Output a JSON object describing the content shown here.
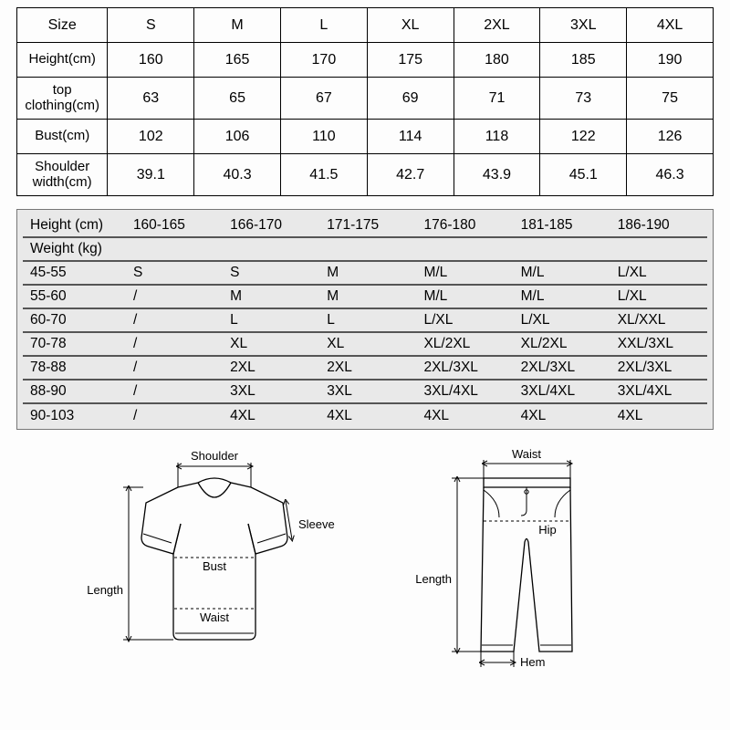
{
  "sizeTable": {
    "columns": [
      "Size",
      "S",
      "M",
      "L",
      "XL",
      "2XL",
      "3XL",
      "4XL"
    ],
    "rows": [
      {
        "label": "Height(cm)",
        "values": [
          "160",
          "165",
          "170",
          "175",
          "180",
          "185",
          "190"
        ]
      },
      {
        "label": "top clothing(cm)",
        "values": [
          "63",
          "65",
          "67",
          "69",
          "71",
          "73",
          "75"
        ]
      },
      {
        "label": "Bust(cm)",
        "values": [
          "102",
          "106",
          "110",
          "114",
          "118",
          "122",
          "126"
        ]
      },
      {
        "label": "Shoulder width(cm)",
        "values": [
          "39.1",
          "40.3",
          "41.5",
          "42.7",
          "43.9",
          "45.1",
          "46.3"
        ]
      }
    ],
    "colWidths": [
      "13%",
      "12.4%",
      "12.4%",
      "12.4%",
      "12.4%",
      "12.4%",
      "12.4%",
      "12.4%"
    ]
  },
  "recTable": {
    "headerLabel": "Height (cm)",
    "heightRanges": [
      "160-165",
      "166-170",
      "171-175",
      "176-180",
      "181-185",
      "186-190"
    ],
    "weightLabel": "Weight (kg)",
    "rows": [
      {
        "label": "45-55",
        "values": [
          "S",
          "S",
          "M",
          "M/L",
          "M/L",
          "L/XL"
        ]
      },
      {
        "label": "55-60",
        "values": [
          "/",
          "M",
          "M",
          "M/L",
          "M/L",
          "L/XL"
        ]
      },
      {
        "label": "60-70",
        "values": [
          "/",
          "L",
          "L",
          "L/XL",
          "L/XL",
          "XL/XXL"
        ]
      },
      {
        "label": "70-78",
        "values": [
          "/",
          "XL",
          "XL",
          "XL/2XL",
          "XL/2XL",
          "XXL/3XL"
        ]
      },
      {
        "label": "78-88",
        "values": [
          "/",
          "2XL",
          "2XL",
          "2XL/3XL",
          "2XL/3XL",
          "2XL/3XL"
        ]
      },
      {
        "label": "88-90",
        "values": [
          "/",
          "3XL",
          "3XL",
          "3XL/4XL",
          "3XL/4XL",
          "3XL/4XL"
        ]
      },
      {
        "label": "90-103",
        "values": [
          "/",
          "4XL",
          "4XL",
          "4XL",
          "4XL",
          "4XL"
        ]
      }
    ],
    "colWidths": [
      "15%",
      "14.1%",
      "14.1%",
      "14.1%",
      "14.1%",
      "14.1%",
      "14.1%"
    ],
    "background": "#e9e9e9",
    "lineColor": "#555"
  },
  "diagrams": {
    "shirt": {
      "labels": {
        "shoulder": "Shoulder",
        "sleeve": "Sleeve",
        "bust": "Bust",
        "length": "Length",
        "waist": "Waist"
      }
    },
    "pants": {
      "labels": {
        "waist": "Waist",
        "hip": "Hip",
        "length": "Length",
        "hem": "Hem"
      }
    }
  }
}
